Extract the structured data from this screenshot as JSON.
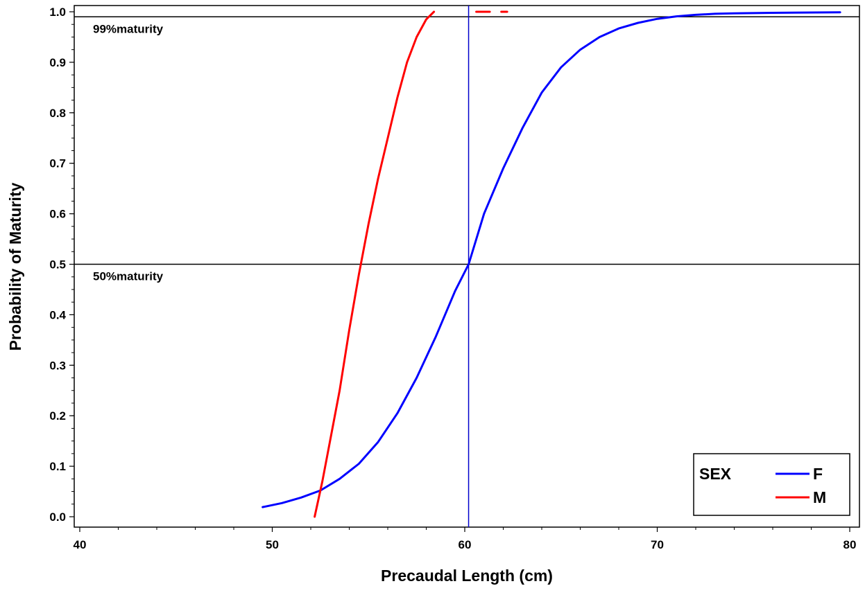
{
  "chart_data": {
    "type": "line",
    "xlabel": "Precaudal Length (cm)",
    "ylabel": "Probability of Maturity",
    "xlim": [
      40,
      80
    ],
    "ylim": [
      0.0,
      1.0
    ],
    "x_ticks": [
      40,
      50,
      60,
      70,
      80
    ],
    "y_ticks": [
      0.0,
      0.1,
      0.2,
      0.3,
      0.4,
      0.5,
      0.6,
      0.7,
      0.8,
      0.9,
      1.0
    ],
    "x_tick_labels": [
      "40",
      "50",
      "60",
      "70",
      "80"
    ],
    "y_tick_labels": [
      "0.0",
      "0.1",
      "0.2",
      "0.3",
      "0.4",
      "0.5",
      "0.6",
      "0.7",
      "0.8",
      "0.9",
      "1.0"
    ],
    "grid": false,
    "reference_lines": [
      {
        "orientation": "horizontal",
        "value": 0.99,
        "label": "99%maturity",
        "color": "#000000"
      },
      {
        "orientation": "horizontal",
        "value": 0.5,
        "label": "50%maturity",
        "color": "#000000"
      },
      {
        "orientation": "vertical",
        "value": 60.2,
        "color": "#0000cc"
      }
    ],
    "legend": {
      "title": "SEX",
      "position": "bottom-right",
      "entries": [
        {
          "label": "F",
          "color": "#0000ff"
        },
        {
          "label": "M",
          "color": "#ff0000"
        }
      ]
    },
    "series": [
      {
        "name": "F",
        "color": "#0000ff",
        "x": [
          49.5,
          50.5,
          51.5,
          52.5,
          53.5,
          54.5,
          55.5,
          56.5,
          57.5,
          58.5,
          59.5,
          60.2,
          61.0,
          62.0,
          63.0,
          64.0,
          65.0,
          66.0,
          67.0,
          68.0,
          69.0,
          70.0,
          71.0,
          72.0,
          73.0,
          74.0,
          76.0,
          79.5
        ],
        "y": [
          0.019,
          0.027,
          0.038,
          0.052,
          0.075,
          0.105,
          0.148,
          0.205,
          0.275,
          0.357,
          0.447,
          0.5,
          0.6,
          0.69,
          0.77,
          0.84,
          0.89,
          0.925,
          0.95,
          0.967,
          0.978,
          0.986,
          0.991,
          0.994,
          0.996,
          0.997,
          0.998,
          0.999
        ]
      },
      {
        "name": "M",
        "color": "#ff0000",
        "x": [
          52.2,
          52.6,
          53.0,
          53.5,
          54.0,
          54.5,
          55.0,
          55.5,
          56.0,
          56.5,
          57.0,
          57.5,
          58.0,
          58.4
        ],
        "y": [
          0.0,
          0.07,
          0.15,
          0.25,
          0.37,
          0.48,
          0.58,
          0.67,
          0.75,
          0.83,
          0.9,
          0.95,
          0.985,
          1.0
        ]
      },
      {
        "name": "M-segment",
        "color": "#ff0000",
        "x": [
          60.6,
          61.3
        ],
        "y": [
          1.0,
          1.0
        ]
      },
      {
        "name": "M-segment-2",
        "color": "#ff0000",
        "x": [
          61.9,
          62.2
        ],
        "y": [
          1.0,
          1.0
        ]
      }
    ]
  }
}
